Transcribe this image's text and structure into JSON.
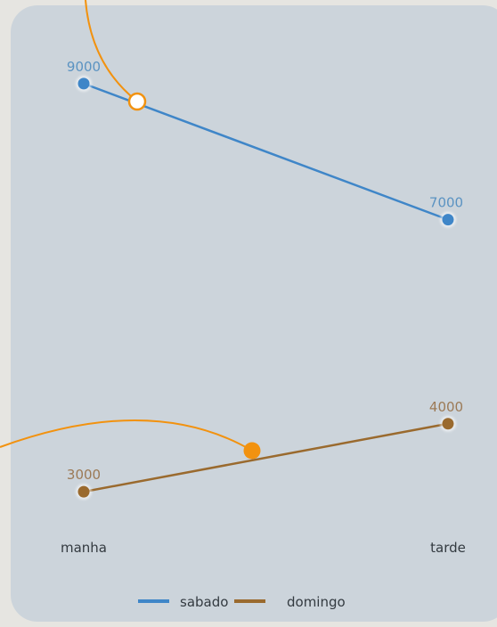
{
  "colors": {
    "sabado": "#3f86c8",
    "domingo": "#9a6a2e",
    "sabado_label": "#5b93c2",
    "domingo_label": "#9c7a56",
    "annotation": "#f2920f",
    "card": "#ccd4db",
    "page": "#e6e5e1"
  },
  "chart_data": {
    "type": "line",
    "categories": [
      "manha",
      "tarde"
    ],
    "series": [
      {
        "name": "sabado",
        "values": [
          9000,
          7000
        ]
      },
      {
        "name": "domingo",
        "values": [
          3000,
          4000
        ]
      }
    ],
    "data_labels": {
      "sabado": [
        "9000",
        "7000"
      ],
      "domingo": [
        "3000",
        "4000"
      ]
    },
    "ylim": [
      2000,
      10000
    ],
    "grid": false,
    "legend": "bottom-center",
    "title": "",
    "xlabel": "",
    "ylabel": ""
  }
}
